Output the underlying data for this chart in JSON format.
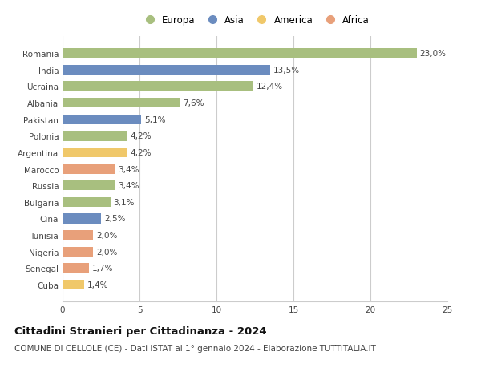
{
  "countries": [
    "Romania",
    "India",
    "Ucraina",
    "Albania",
    "Pakistan",
    "Polonia",
    "Argentina",
    "Marocco",
    "Russia",
    "Bulgaria",
    "Cina",
    "Tunisia",
    "Nigeria",
    "Senegal",
    "Cuba"
  ],
  "values": [
    23.0,
    13.5,
    12.4,
    7.6,
    5.1,
    4.2,
    4.2,
    3.4,
    3.4,
    3.1,
    2.5,
    2.0,
    2.0,
    1.7,
    1.4
  ],
  "labels": [
    "23,0%",
    "13,5%",
    "12,4%",
    "7,6%",
    "5,1%",
    "4,2%",
    "4,2%",
    "3,4%",
    "3,4%",
    "3,1%",
    "2,5%",
    "2,0%",
    "2,0%",
    "1,7%",
    "1,4%"
  ],
  "continents": [
    "Europa",
    "Asia",
    "Europa",
    "Europa",
    "Asia",
    "Europa",
    "America",
    "Africa",
    "Europa",
    "Europa",
    "Asia",
    "Africa",
    "Africa",
    "Africa",
    "America"
  ],
  "colors": {
    "Europa": "#a8bf7f",
    "Asia": "#6b8cbf",
    "America": "#f0c86a",
    "Africa": "#e8a07a"
  },
  "legend_order": [
    "Europa",
    "Asia",
    "America",
    "Africa"
  ],
  "title": "Cittadini Stranieri per Cittadinanza - 2024",
  "subtitle": "COMUNE DI CELLOLE (CE) - Dati ISTAT al 1° gennaio 2024 - Elaborazione TUTTITALIA.IT",
  "xlim": [
    0,
    25
  ],
  "xticks": [
    0,
    5,
    10,
    15,
    20,
    25
  ],
  "bg_color": "#ffffff",
  "grid_color": "#cccccc",
  "bar_height": 0.6,
  "title_fontsize": 9.5,
  "subtitle_fontsize": 7.5,
  "label_fontsize": 7.5,
  "tick_fontsize": 7.5,
  "legend_fontsize": 8.5
}
